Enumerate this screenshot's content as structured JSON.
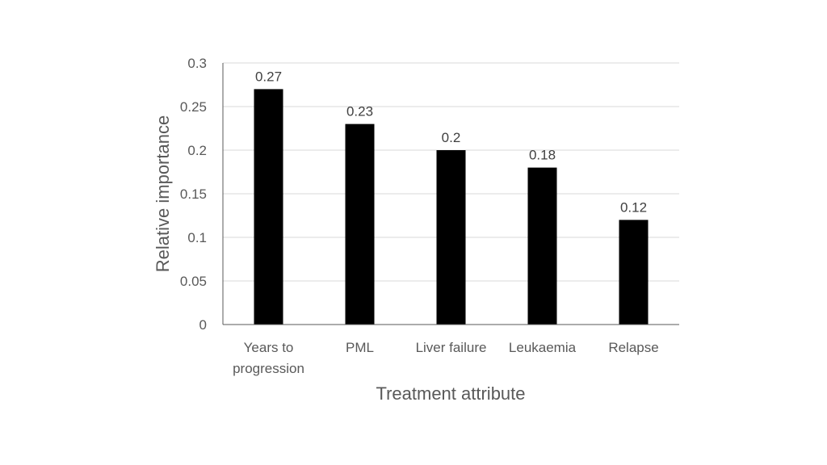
{
  "chart_data": {
    "type": "bar",
    "title": "",
    "xlabel": "Treatment attribute",
    "ylabel": "Relative importance",
    "ylim": [
      0,
      0.3
    ],
    "yticks": [
      0,
      0.05,
      0.1,
      0.15,
      0.2,
      0.25,
      0.3
    ],
    "ytick_labels": [
      "0",
      "0.05",
      "0.1",
      "0.15",
      "0.2",
      "0.25",
      "0.3"
    ],
    "categories": [
      [
        "Years to",
        "progression"
      ],
      [
        "PML"
      ],
      [
        "Liver failure"
      ],
      [
        "Leukaemia"
      ],
      [
        "Relapse"
      ]
    ],
    "values": [
      0.27,
      0.23,
      0.2,
      0.18,
      0.12
    ],
    "data_labels": [
      "0.27",
      "0.23",
      "0.2",
      "0.18",
      "0.12"
    ],
    "grid": true,
    "legend": "none",
    "bar_color": "#000000",
    "grid_color": "#d9d9d9",
    "axis_color": "#595959"
  }
}
